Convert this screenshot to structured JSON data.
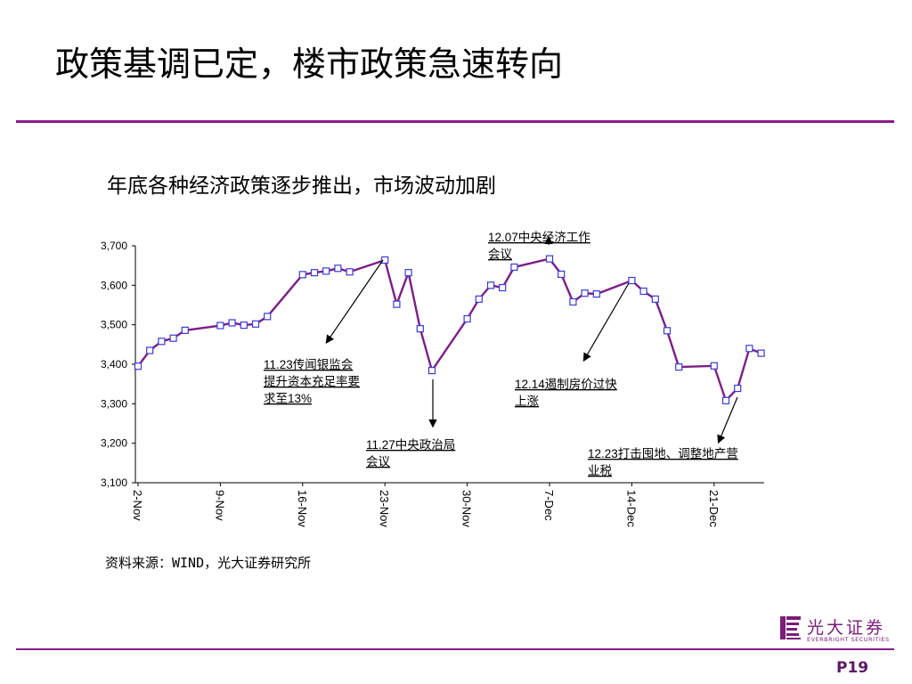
{
  "slide": {
    "title": "政策基调已定，楼市政策急速转向",
    "source": "资料来源：WIND，光大证券研究所",
    "page": "P19"
  },
  "logo": {
    "name_cn": "光大证券",
    "name_en": "EVERBRIGHT SECURITIES"
  },
  "colors": {
    "accent": "#8b1a89",
    "line": "#7b1f86",
    "marker": "#3b3bd1"
  },
  "chart_data": {
    "type": "line",
    "title": "年底各种经济政策逐步推出，市场波动加剧",
    "xlabel": "",
    "ylabel": "",
    "ylim": [
      3100,
      3700
    ],
    "yticks": [
      3100,
      3200,
      3300,
      3400,
      3500,
      3600,
      3700
    ],
    "ytick_labels": [
      "3,100",
      "3,200",
      "3,300",
      "3,400",
      "3,500",
      "3,600",
      "3,700"
    ],
    "xlim": [
      "2015-11-02",
      "2015-12-28"
    ],
    "xticks": [
      "2015-11-02",
      "2015-11-09",
      "2015-11-16",
      "2015-11-23",
      "2015-11-30",
      "2015-12-07",
      "2015-12-14",
      "2015-12-21"
    ],
    "xtick_labels": [
      "2-Nov",
      "9-Nov",
      "16-Nov",
      "23-Nov",
      "30-Nov",
      "7-Dec",
      "14-Dec",
      "21-Dec"
    ],
    "grid": false,
    "legend": "none",
    "series": [
      {
        "x": [
          "2015-11-02",
          "2015-11-03",
          "2015-11-04",
          "2015-11-05",
          "2015-11-06",
          "2015-11-09",
          "2015-11-10",
          "2015-11-11",
          "2015-11-12",
          "2015-11-13",
          "2015-11-16",
          "2015-11-17",
          "2015-11-18",
          "2015-11-19",
          "2015-11-20",
          "2015-11-23",
          "2015-11-24",
          "2015-11-25",
          "2015-11-26",
          "2015-11-27",
          "2015-11-30",
          "2015-12-01",
          "2015-12-02",
          "2015-12-03",
          "2015-12-04",
          "2015-12-07",
          "2015-12-08",
          "2015-12-09",
          "2015-12-10",
          "2015-12-11",
          "2015-12-14",
          "2015-12-15",
          "2015-12-16",
          "2015-12-17",
          "2015-12-18",
          "2015-12-21",
          "2015-12-22",
          "2015-12-23",
          "2015-12-24",
          "2015-12-25"
        ],
        "y": [
          3395,
          3435,
          3458,
          3466,
          3486,
          3498,
          3505,
          3499,
          3502,
          3521,
          3627,
          3632,
          3636,
          3643,
          3634,
          3664,
          3552,
          3632,
          3490,
          3384,
          3515,
          3565,
          3600,
          3594,
          3646,
          3667,
          3628,
          3558,
          3580,
          3578,
          3612,
          3585,
          3565,
          3485,
          3393,
          3396,
          3308,
          3339,
          3440,
          3428
        ]
      }
    ],
    "annotations": [
      {
        "text_line1": "11.23传闻银监会",
        "text_line2": "提升资本充足率要",
        "text_line3": "求至13%",
        "point": [
          "2015-11-23",
          3664
        ]
      },
      {
        "text_line1": "11.27中央政治局",
        "text_line2": "会议",
        "point": [
          "2015-11-27",
          3384
        ]
      },
      {
        "text_line1": "12.07中央经济工作",
        "text_line2": "会议",
        "point": [
          "2015-12-07",
          3667
        ]
      },
      {
        "text_line1": "12.14遏制房价过快",
        "text_line2": "上涨",
        "point": [
          "2015-12-14",
          3612
        ]
      },
      {
        "text_line1": "12.23打击囤地、调整地产营",
        "text_line2": "业税",
        "point": [
          "2015-12-23",
          3339
        ]
      }
    ]
  }
}
